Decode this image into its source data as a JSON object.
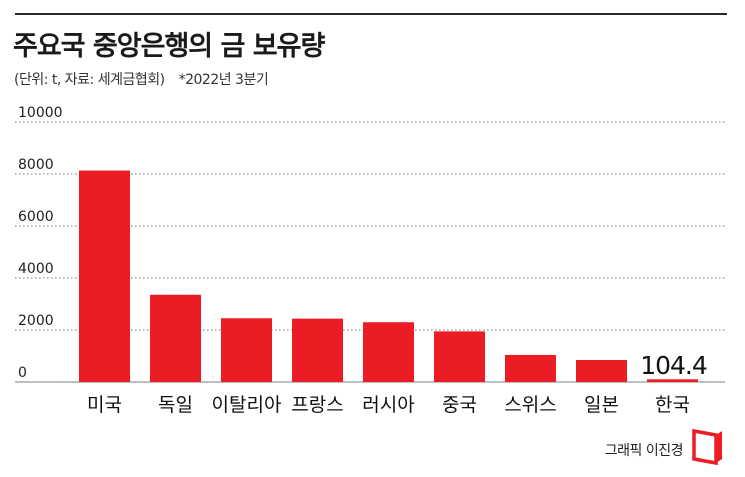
{
  "header": {
    "title": "주요국 중앙은행의 금 보유량",
    "unit_source": "(단위: t, 자료: 세계금협회)",
    "note": "*2022년 3분기"
  },
  "credit": "그래픽 이진경",
  "colors": {
    "bar": "#ec1c24",
    "grid": "#777777",
    "axis": "#999999"
  },
  "chart_data": {
    "type": "bar",
    "title": "주요국 중앙은행의 금 보유량",
    "xlabel": "",
    "ylabel": "",
    "ylim": [
      0,
      10000
    ],
    "yticks": [
      0,
      2000,
      4000,
      6000,
      8000,
      10000
    ],
    "grid": true,
    "categories": [
      "미국",
      "독일",
      "이탈리아",
      "프랑스",
      "러시아",
      "중국",
      "스위스",
      "일본",
      "한국"
    ],
    "values": [
      8133,
      3355,
      2452,
      2437,
      2299,
      1948,
      1040,
      846,
      104.4
    ],
    "annotations": [
      {
        "category": "한국",
        "text": "104.4"
      }
    ]
  }
}
